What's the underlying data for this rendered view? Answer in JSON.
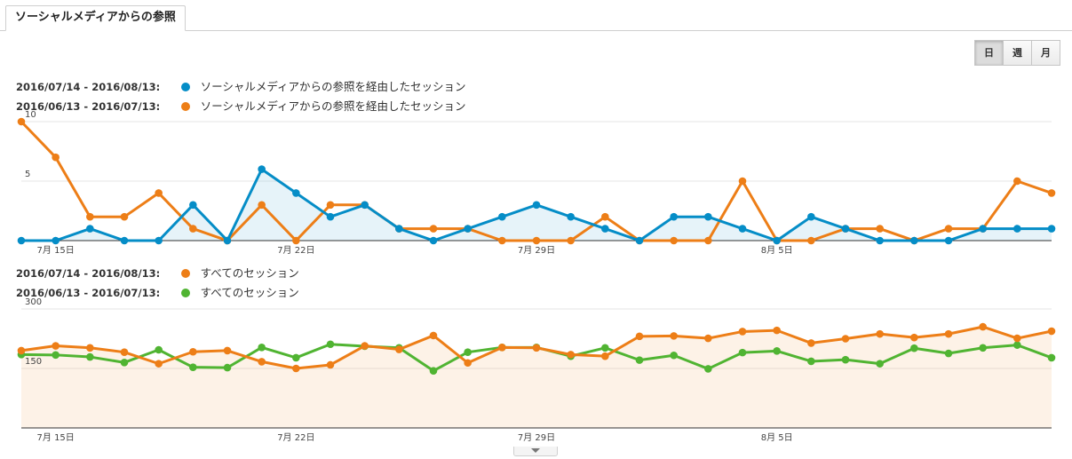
{
  "tab": {
    "label": "ソーシャルメディアからの参照"
  },
  "periods": [
    {
      "label": "日",
      "active": true
    },
    {
      "label": "週",
      "active": false
    },
    {
      "label": "月",
      "active": false
    }
  ],
  "chart_data": [
    {
      "type": "line",
      "legend": [
        {
          "range": "2016/07/14 - 2016/08/13:",
          "name": "ソーシャルメディアからの参照を経由したセッション",
          "color": "#058dc7"
        },
        {
          "range": "2016/06/13 - 2016/07/13:",
          "name": "ソーシャルメディアからの参照を経由したセッション",
          "color": "#ed7e17"
        }
      ],
      "x_ticks": [
        {
          "index": 1,
          "label": "7月 15日"
        },
        {
          "index": 8,
          "label": "7月 22日"
        },
        {
          "index": 15,
          "label": "7月 29日"
        },
        {
          "index": 22,
          "label": "8月 5日"
        }
      ],
      "y_ticks": [
        5,
        10
      ],
      "ylim": [
        0,
        10
      ],
      "series": [
        {
          "name": "2016/07/14 - 2016/08/13",
          "color": "#058dc7",
          "fill": true,
          "values": [
            0,
            0,
            1,
            0,
            0,
            3,
            0,
            6,
            4,
            2,
            3,
            1,
            0,
            1,
            2,
            3,
            2,
            1,
            0,
            2,
            2,
            1,
            0,
            2,
            1,
            0,
            0,
            0,
            1,
            1,
            1
          ]
        },
        {
          "name": "2016/06/13 - 2016/07/13",
          "color": "#ed7e17",
          "fill": false,
          "values": [
            10,
            7,
            2,
            2,
            4,
            1,
            0,
            3,
            0,
            3,
            3,
            1,
            1,
            1,
            0,
            0,
            0,
            2,
            0,
            0,
            0,
            5,
            0,
            0,
            1,
            1,
            0,
            1,
            1,
            5,
            4
          ]
        }
      ]
    },
    {
      "type": "line",
      "legend": [
        {
          "range": "2016/07/14 - 2016/08/13:",
          "name": "すべてのセッション",
          "color": "#ed7e17"
        },
        {
          "range": "2016/06/13 - 2016/07/13:",
          "name": "すべてのセッション",
          "color": "#50b432"
        }
      ],
      "x_ticks": [
        {
          "index": 1,
          "label": "7月 15日"
        },
        {
          "index": 8,
          "label": "7月 22日"
        },
        {
          "index": 15,
          "label": "7月 29日"
        },
        {
          "index": 22,
          "label": "8月 5日"
        }
      ],
      "y_ticks": [
        150,
        300
      ],
      "ylim": [
        0,
        300
      ],
      "series": [
        {
          "name": "2016/07/14 - 2016/08/13",
          "color": "#ed7e17",
          "fill": true,
          "values": [
            195,
            207,
            202,
            191,
            162,
            192,
            195,
            167,
            150,
            159,
            207,
            198,
            233,
            164,
            203,
            202,
            185,
            181,
            231,
            232,
            226,
            243,
            246,
            214,
            225,
            237,
            228,
            237,
            255,
            226,
            244
          ]
        },
        {
          "name": "2016/06/13 - 2016/07/13",
          "color": "#50b432",
          "fill": false,
          "values": [
            185,
            184,
            179,
            165,
            197,
            153,
            152,
            203,
            177,
            211,
            206,
            202,
            144,
            191,
            203,
            203,
            181,
            202,
            171,
            183,
            149,
            190,
            194,
            168,
            172,
            162,
            201,
            188,
            202,
            209,
            177
          ]
        }
      ]
    }
  ]
}
